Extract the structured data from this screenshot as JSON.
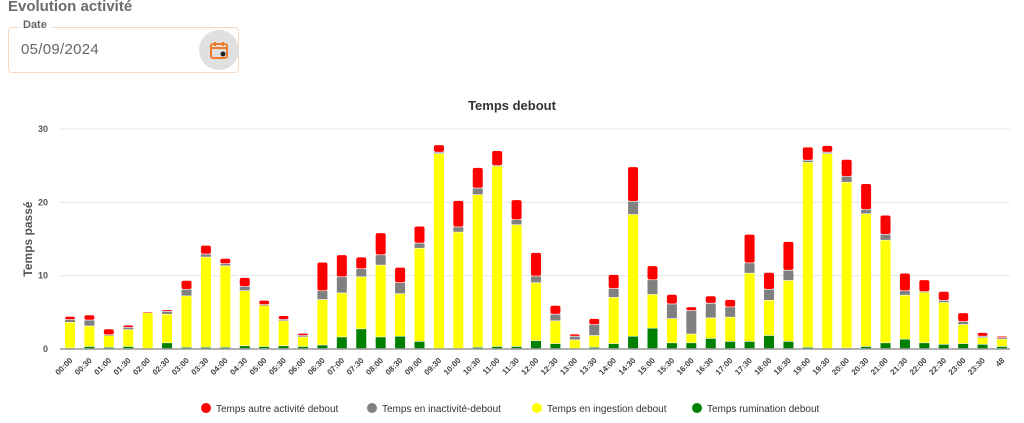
{
  "header": {
    "title": "Evolution activité"
  },
  "date_field": {
    "label": "Date",
    "value": "05/09/2024",
    "icon": "calendar-icon"
  },
  "chart_data": {
    "type": "bar",
    "stacked": true,
    "title": "Temps debout",
    "xlabel": "",
    "ylabel": "Temps passé",
    "ylim": [
      0,
      30
    ],
    "yticks": [
      0,
      10,
      20,
      30
    ],
    "grid": true,
    "legend_position": "bottom",
    "categories": [
      "00:00",
      "00:30",
      "01:00",
      "01:30",
      "02:00",
      "02:30",
      "03:00",
      "03:30",
      "04:00",
      "04:30",
      "05:00",
      "05:30",
      "06:00",
      "06:30",
      "07:00",
      "07:30",
      "08:00",
      "08:30",
      "09:00",
      "09:30",
      "10:00",
      "10:30",
      "11:00",
      "11:30",
      "12:00",
      "12:30",
      "13:00",
      "13:30",
      "14:00",
      "14:30",
      "15:00",
      "15:30",
      "16:00",
      "16:30",
      "17:00",
      "17:30",
      "18:00",
      "18:30",
      "19:00",
      "19:30",
      "20:00",
      "20:30",
      "21:00",
      "21:30",
      "22:00",
      "22:30",
      "23:00",
      "23:30",
      "48"
    ],
    "series": [
      {
        "name": "Temps rumination debout",
        "color": "#008000",
        "values": [
          0.1,
          0.3,
          0.2,
          0.3,
          0,
          0.8,
          0.2,
          0.2,
          0.2,
          0.4,
          0.3,
          0.4,
          0.3,
          0.5,
          1.6,
          2.7,
          1.6,
          1.7,
          1.0,
          0,
          0,
          0.2,
          0.3,
          0.3,
          1.1,
          0.7,
          0,
          0.2,
          0.7,
          1.7,
          2.8,
          0.8,
          0.8,
          1.4,
          1.0,
          1.0,
          1.8,
          1.0,
          0.2,
          0,
          0.1,
          0.3,
          0.8,
          1.3,
          0.8,
          0.6,
          0.7,
          0.6,
          0.3
        ]
      },
      {
        "name": "Temps en ingestion debout",
        "color": "#ffff00",
        "values": [
          3.5,
          2.8,
          1.6,
          2.3,
          4.9,
          3.9,
          7.0,
          12.3,
          11.1,
          7.5,
          5.6,
          3.4,
          1.3,
          6.2,
          6.0,
          7.1,
          9.8,
          5.8,
          12.7,
          26.6,
          15.9,
          20.8,
          24.6,
          16.6,
          7.9,
          3.1,
          1.2,
          1.6,
          6.3,
          16.6,
          4.6,
          3.3,
          1.2,
          2.8,
          3.3,
          9.3,
          4.8,
          8.3,
          25.2,
          26.6,
          22.6,
          18.1,
          14.0,
          6.0,
          6.9,
          5.7,
          2.6,
          0.9,
          1.0
        ]
      },
      {
        "name": "Temps en inactivité-debout",
        "color": "#808080",
        "values": [
          0.4,
          0.8,
          0.1,
          0.3,
          0,
          0.4,
          0.9,
          0.4,
          0.3,
          0.6,
          0.1,
          0.2,
          0.2,
          1.2,
          2.2,
          1.1,
          1.4,
          1.5,
          0.7,
          0.2,
          0.7,
          0.9,
          0.1,
          0.7,
          0.9,
          0.9,
          0.5,
          1.5,
          1.2,
          1.8,
          2.0,
          2.0,
          3.2,
          2.0,
          1.4,
          1.4,
          1.5,
          1.4,
          0.3,
          0.2,
          0.8,
          0.6,
          0.8,
          0.6,
          0.1,
          0.3,
          0.4,
          0.2,
          0.2
        ]
      },
      {
        "name": "Temps autre activité debout",
        "color": "#ff0000",
        "values": [
          0.4,
          0.7,
          0.8,
          0.3,
          0.1,
          0.2,
          1.2,
          1.2,
          0.7,
          1.2,
          0.6,
          0.5,
          0.3,
          3.9,
          3.0,
          1.6,
          3.0,
          2.1,
          2.3,
          1.0,
          3.6,
          2.8,
          2.0,
          2.7,
          3.2,
          1.2,
          0.3,
          0.8,
          1.9,
          4.7,
          1.9,
          1.3,
          0.5,
          1.0,
          1.0,
          3.9,
          2.3,
          3.9,
          1.8,
          0.9,
          2.3,
          3.5,
          2.6,
          2.4,
          1.6,
          1.2,
          1.2,
          0.5,
          0.2
        ]
      }
    ],
    "legend_order": [
      3,
      2,
      1,
      0
    ]
  }
}
